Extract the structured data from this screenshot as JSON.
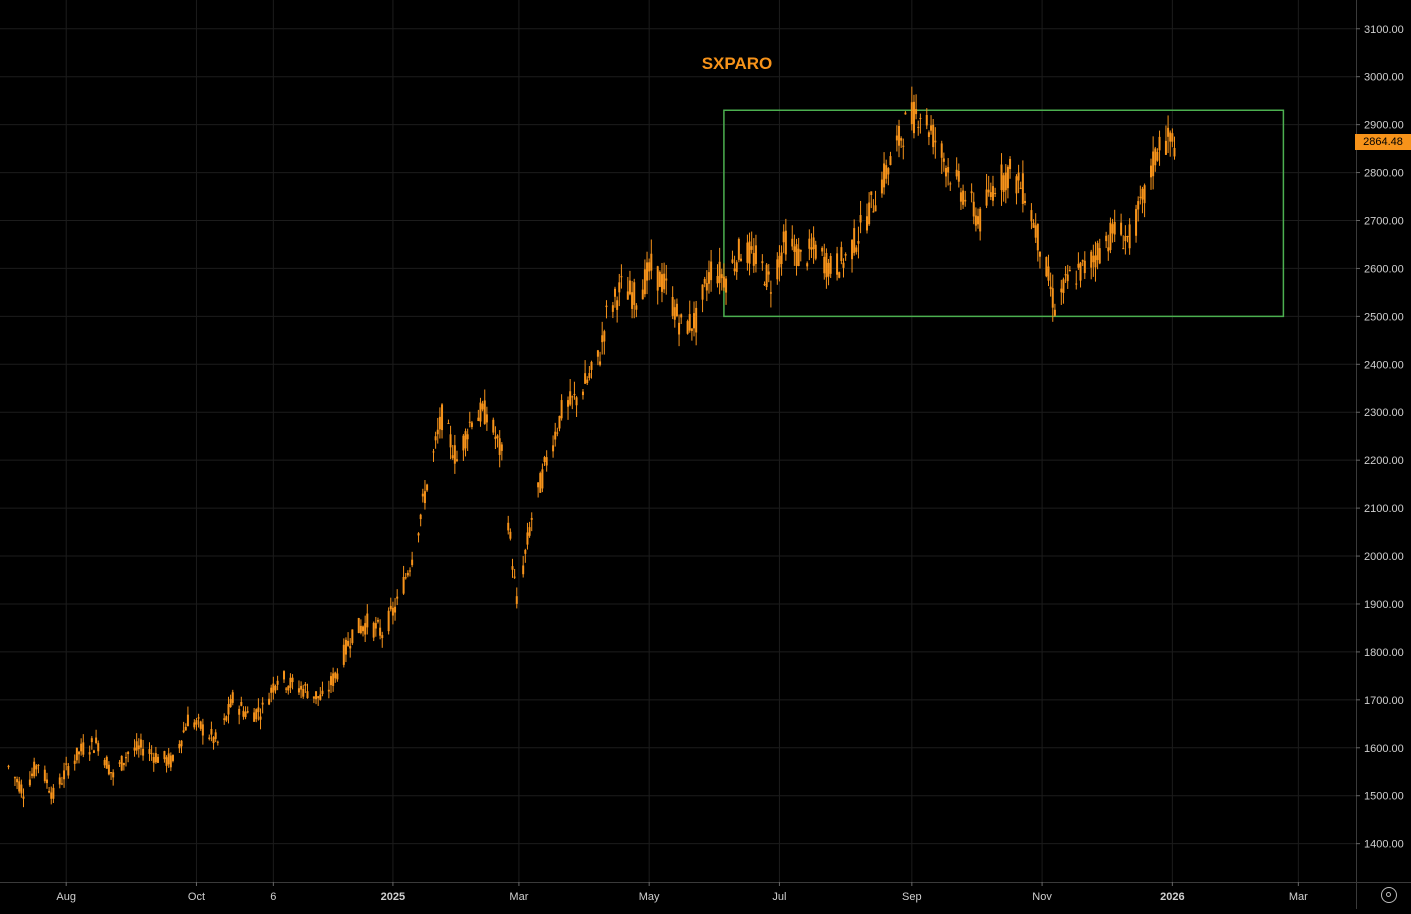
{
  "chart_data": {
    "type": "candlestick",
    "title": "SXPARO",
    "title_color": "#f7931a",
    "candle_color": "#f7931a",
    "background": "#000000",
    "grid": true,
    "grid_color": "#1c1c1c",
    "ylim": [
      1320,
      3160
    ],
    "xlim": [
      "2024-07-01",
      "2026-03-28"
    ],
    "y_ticks": [
      "1400.00",
      "1500.00",
      "1600.00",
      "1700.00",
      "1800.00",
      "1900.00",
      "2000.00",
      "2100.00",
      "2200.00",
      "2300.00",
      "2400.00",
      "2500.00",
      "2600.00",
      "2700.00",
      "2800.00",
      "2900.00",
      "3000.00",
      "3100.00"
    ],
    "x_ticks": [
      {
        "label": "Aug",
        "date": "2024-08-01",
        "bold": false
      },
      {
        "label": "Oct",
        "date": "2024-10-01",
        "bold": false
      },
      {
        "label": "6",
        "date": "2024-11-06",
        "bold": false
      },
      {
        "label": "2025",
        "date": "2025-01-01",
        "bold": true
      },
      {
        "label": "Mar",
        "date": "2025-03-01",
        "bold": false
      },
      {
        "label": "May",
        "date": "2025-05-01",
        "bold": false
      },
      {
        "label": "Jul",
        "date": "2025-07-01",
        "bold": false
      },
      {
        "label": "Sep",
        "date": "2025-09-01",
        "bold": false
      },
      {
        "label": "Nov",
        "date": "2025-11-01",
        "bold": false
      },
      {
        "label": "2026",
        "date": "2026-01-01",
        "bold": true
      },
      {
        "label": "Mar",
        "date": "2026-03-01",
        "bold": false
      }
    ],
    "last_price": "2864.48",
    "last_value": 2864.48,
    "box": {
      "x_start": "2025-06-05",
      "x_end": "2026-02-22",
      "y_low": 2500,
      "y_high": 2930,
      "color": "#4caf50"
    },
    "series": [
      {
        "x": [
          "2024-07-05",
          "2024-07-12",
          "2024-07-19",
          "2024-07-26",
          "2024-08-02",
          "2024-08-09",
          "2024-08-16",
          "2024-08-23",
          "2024-08-30",
          "2024-09-06",
          "2024-09-13",
          "2024-09-20",
          "2024-09-27",
          "2024-10-04",
          "2024-10-11",
          "2024-10-18",
          "2024-10-25",
          "2024-11-01",
          "2024-11-08",
          "2024-11-15",
          "2024-11-22",
          "2024-11-29",
          "2024-12-06",
          "2024-12-13",
          "2024-12-20",
          "2024-12-27",
          "2025-01-03",
          "2025-01-10",
          "2025-01-17",
          "2025-01-24",
          "2025-01-31",
          "2025-02-07",
          "2025-02-14",
          "2025-02-21",
          "2025-02-28",
          "2025-03-07",
          "2025-03-14",
          "2025-03-21",
          "2025-03-28",
          "2025-04-04",
          "2025-04-08",
          "2025-04-11",
          "2025-04-18",
          "2025-04-25",
          "2025-05-02",
          "2025-05-09",
          "2025-05-16",
          "2025-05-23",
          "2025-05-30",
          "2025-06-06",
          "2025-06-13",
          "2025-06-20",
          "2025-06-27",
          "2025-07-04",
          "2025-07-11",
          "2025-07-18",
          "2025-07-25",
          "2025-08-01",
          "2025-08-08",
          "2025-08-15",
          "2025-08-22",
          "2025-08-29",
          "2025-09-05",
          "2025-09-12",
          "2025-09-19",
          "2025-09-26",
          "2025-10-03",
          "2025-10-10",
          "2025-10-17",
          "2025-10-24",
          "2025-10-31",
          "2025-11-07",
          "2025-11-14",
          "2025-11-21",
          "2025-11-28",
          "2025-12-05",
          "2025-12-12",
          "2025-12-19",
          "2025-12-26",
          "2026-01-02"
        ],
        "y": [
          1560,
          1510,
          1570,
          1500,
          1560,
          1600,
          1610,
          1540,
          1590,
          1600,
          1580,
          1570,
          1660,
          1640,
          1610,
          1700,
          1670,
          1680,
          1750,
          1730,
          1720,
          1700,
          1760,
          1840,
          1860,
          1840,
          1900,
          2000,
          2150,
          2290,
          2200,
          2290,
          2300,
          2210,
          1900,
          2080,
          2200,
          2300,
          2330,
          2380,
          2420,
          2500,
          2560,
          2540,
          2600,
          2560,
          2480,
          2490,
          2600,
          2580,
          2640,
          2620,
          2570,
          2660,
          2620,
          2640,
          2600,
          2620,
          2680,
          2750,
          2820,
          2900,
          2930,
          2870,
          2800,
          2750,
          2700,
          2780,
          2800,
          2760,
          2650,
          2520,
          2580,
          2600,
          2640,
          2680,
          2660,
          2750,
          2864,
          2864
        ]
      }
    ]
  }
}
